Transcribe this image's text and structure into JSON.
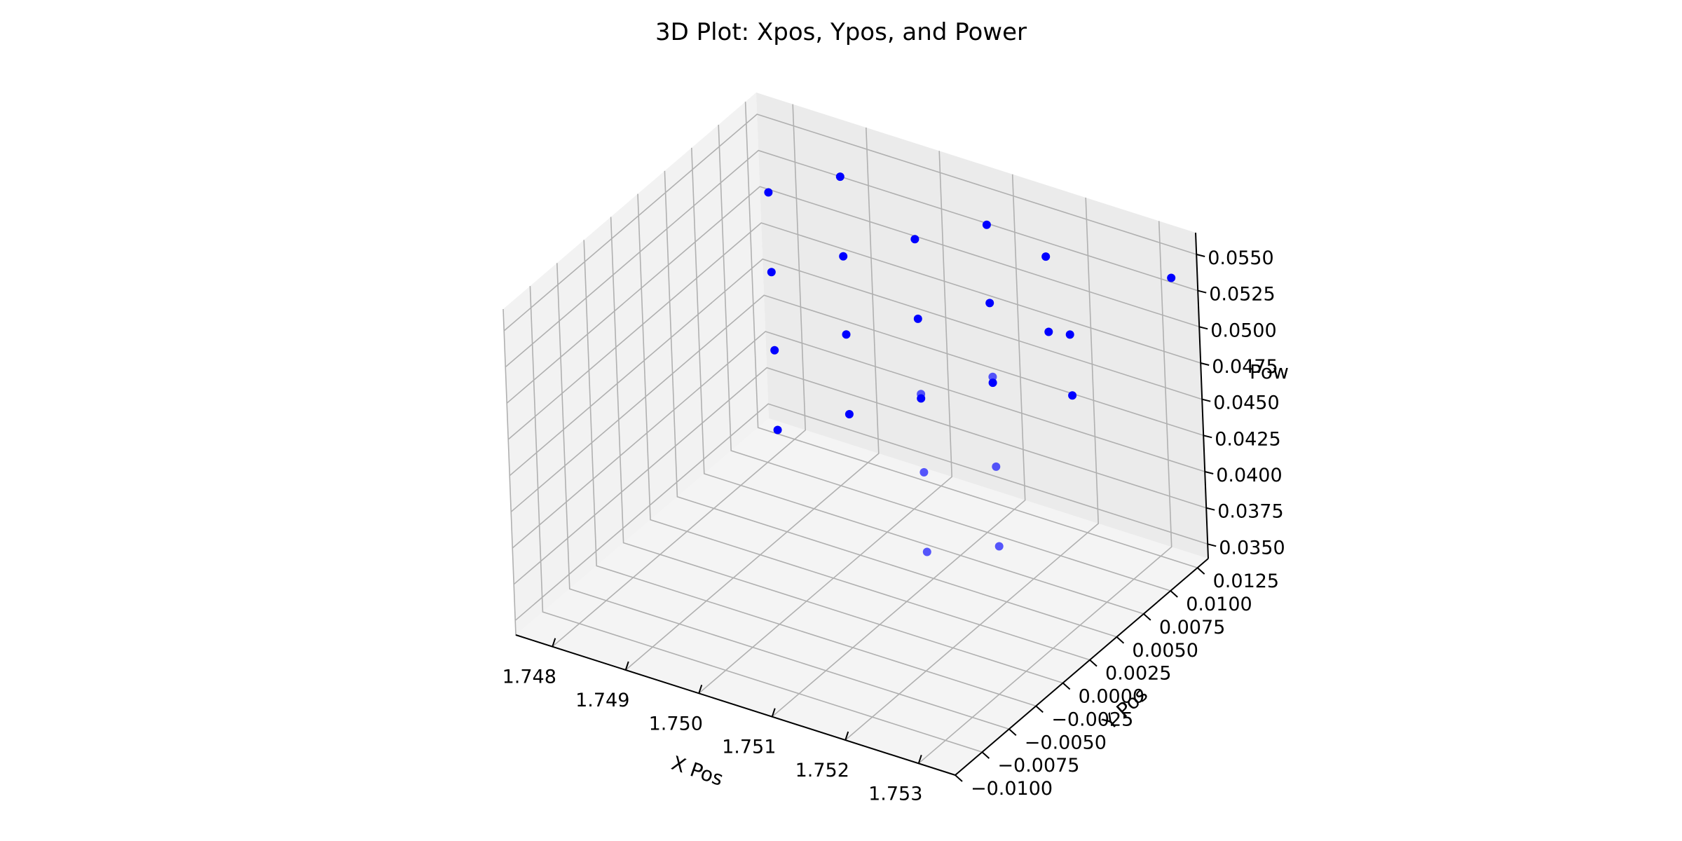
{
  "chart_data": {
    "type": "scatter",
    "title": "3D Plot: Xpos, Ypos, and Power",
    "xlabel": "X Pos",
    "ylabel": "Y Pos",
    "zlabel": "Pow",
    "xlim": [
      1.7475,
      1.7535
    ],
    "ylim": [
      -0.01,
      0.0135
    ],
    "zlim": [
      0.034,
      0.0565
    ],
    "x_ticks": [
      "1.748",
      "1.749",
      "1.750",
      "1.751",
      "1.752",
      "1.753"
    ],
    "y_ticks": [
      "−0.0100",
      "−0.0075",
      "−0.0050",
      "−0.0025",
      "0.0000",
      "0.0025",
      "0.0050",
      "0.0075",
      "0.0100",
      "0.0125"
    ],
    "z_ticks": [
      "0.0350",
      "0.0375",
      "0.0400",
      "0.0425",
      "0.0450",
      "0.0475",
      "0.0500",
      "0.0525",
      "0.0550"
    ],
    "grid": true,
    "marker_color": "#0000ff",
    "pane_colors": {
      "left": "#f2f2f2",
      "back": "#ebebeb",
      "floor": "#f4f4f4"
    },
    "points": [
      {
        "x": 1.748,
        "y": 0.011,
        "z": 0.0356
      },
      {
        "x": 1.748,
        "y": 0.011,
        "z": 0.0411
      },
      {
        "x": 1.748,
        "y": 0.011,
        "z": 0.0465
      },
      {
        "x": 1.748,
        "y": 0.011,
        "z": 0.052
      },
      {
        "x": 1.749,
        "y": 0.011,
        "z": 0.0383
      },
      {
        "x": 1.749,
        "y": 0.011,
        "z": 0.0438
      },
      {
        "x": 1.749,
        "y": 0.011,
        "z": 0.0492
      },
      {
        "x": 1.749,
        "y": 0.011,
        "z": 0.0547
      },
      {
        "x": 1.75,
        "y": 0.011,
        "z": 0.041
      },
      {
        "x": 1.75,
        "y": 0.011,
        "z": 0.0465
      },
      {
        "x": 1.75,
        "y": 0.011,
        "z": 0.052
      },
      {
        "x": 1.751,
        "y": 0.011,
        "z": 0.0437
      },
      {
        "x": 1.751,
        "y": 0.011,
        "z": 0.0492
      },
      {
        "x": 1.751,
        "y": 0.011,
        "z": 0.0546
      },
      {
        "x": 1.7518,
        "y": 0.011,
        "z": 0.0537
      },
      {
        "x": 1.7518,
        "y": 0.011,
        "z": 0.0485
      },
      {
        "x": 1.752,
        "y": -0.002,
        "z": 0.0419
      },
      {
        "x": 1.752,
        "y": -0.002,
        "z": 0.0474
      },
      {
        "x": 1.752,
        "y": -0.002,
        "z": 0.0528
      },
      {
        "x": 1.753,
        "y": -0.002,
        "z": 0.0439
      },
      {
        "x": 1.753,
        "y": -0.002,
        "z": 0.0494
      },
      {
        "x": 1.753,
        "y": -0.002,
        "z": 0.0556
      },
      {
        "x": 1.7534,
        "y": 0.0025,
        "z": 0.0563
      },
      {
        "x": 1.7534,
        "y": 0.0025,
        "z": 0.0521
      },
      {
        "x": 1.7534,
        "y": 0.0118,
        "z": 0.0543
      }
    ]
  }
}
